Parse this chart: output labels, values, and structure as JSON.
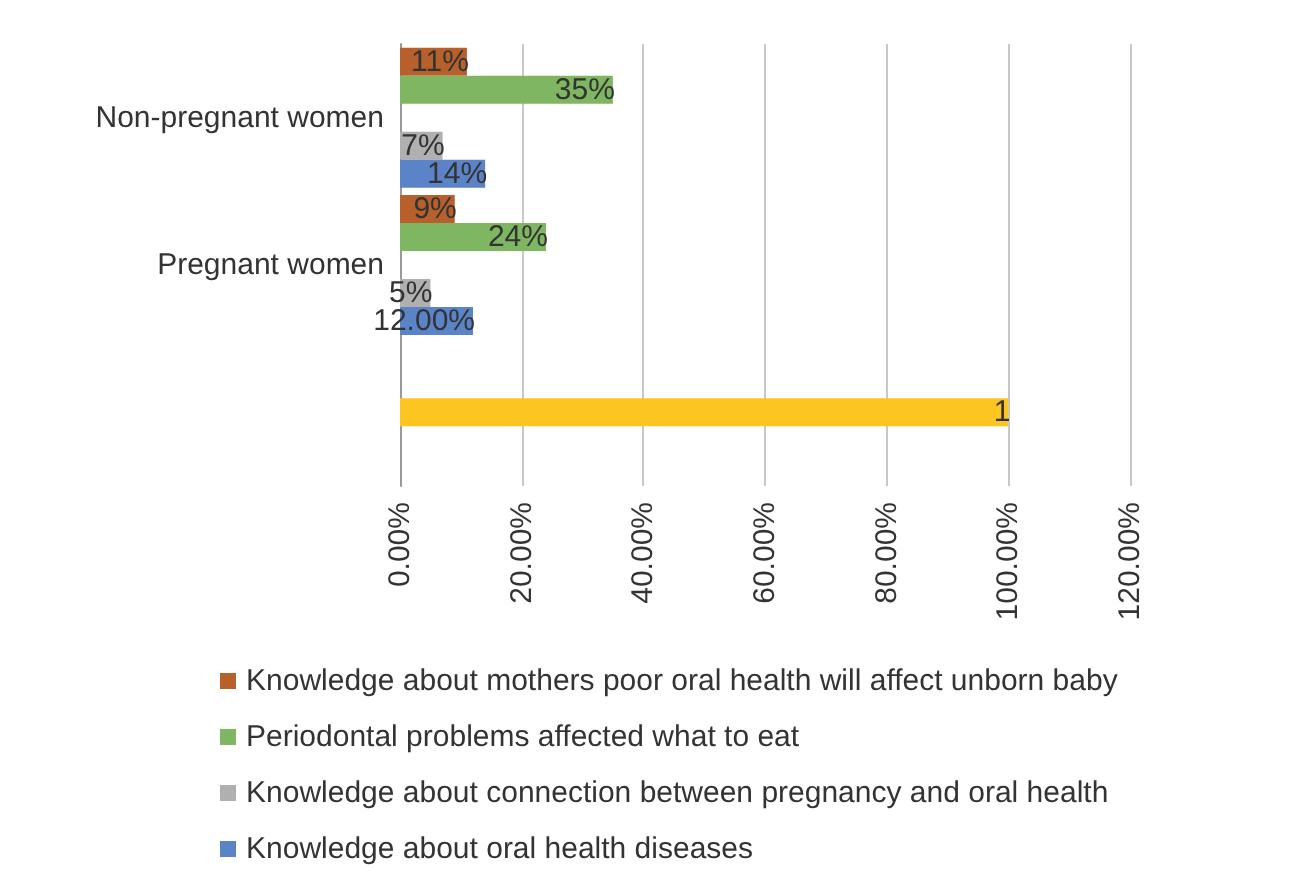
{
  "chart_data": {
    "type": "bar",
    "orientation": "horizontal",
    "categories": [
      "Non-pregnant women",
      "Pregnant women",
      null
    ],
    "series": [
      {
        "name": "Knowledge about mothers poor oral health will affect unborn baby",
        "color": "#b8602c",
        "values": [
          0.11,
          0.09,
          null
        ],
        "value_labels": [
          "11%",
          "9%",
          null
        ]
      },
      {
        "name": "Periodontal problems affected what to eat",
        "color": "#7fb661",
        "values": [
          0.35,
          0.24,
          null
        ],
        "value_labels": [
          "35%",
          "24%",
          null
        ]
      },
      {
        "color": "#fcc521",
        "values": [
          null,
          null,
          1
        ],
        "value_labels": [
          null,
          null,
          "1"
        ]
      },
      {
        "name": "Knowledge about connection between pregnancy and oral health",
        "color": "#b0b0b0",
        "values": [
          0.07,
          0.05,
          null
        ],
        "value_labels": [
          "7%",
          "5%",
          null
        ]
      },
      {
        "name": "Knowledge about oral health diseases",
        "color": "#5b84c8",
        "values": [
          0.14,
          0.12,
          null
        ],
        "value_labels": [
          "14%",
          "12.00%",
          null
        ]
      }
    ],
    "xlim": [
      0,
      1.2
    ],
    "xticks": [
      {
        "value": 0,
        "label": "0.00%"
      },
      {
        "value": 0.2,
        "label": "20.00%"
      },
      {
        "value": 0.4,
        "label": "40.00%"
      },
      {
        "value": 0.6,
        "label": "60.00%"
      },
      {
        "value": 0.8,
        "label": "80.00%"
      },
      {
        "value": 1,
        "label": "100.00%"
      },
      {
        "value": 1.2,
        "label": "120.00%"
      }
    ],
    "grid": "x",
    "legend": "bottom"
  }
}
